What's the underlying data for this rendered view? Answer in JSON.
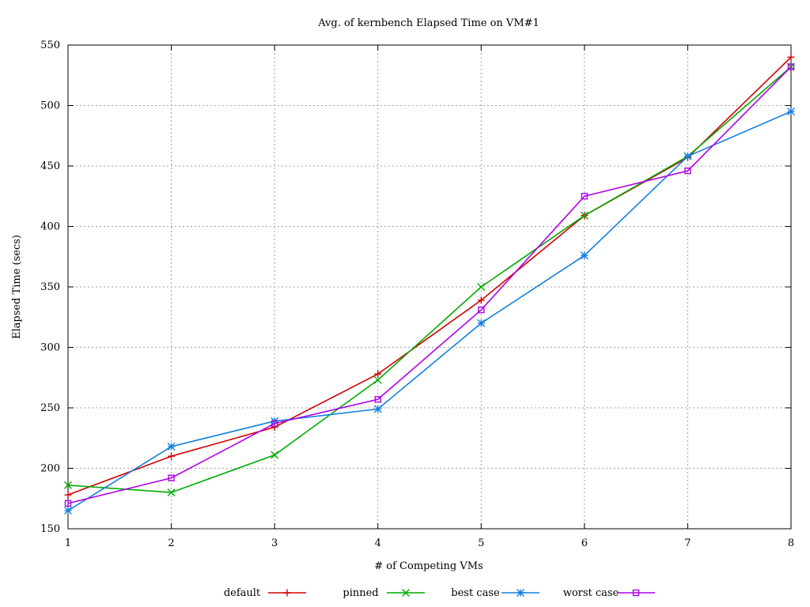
{
  "chart_data": {
    "type": "line",
    "title": "Avg. of kernbench Elapsed Time on VM#1",
    "xlabel": "# of Competing VMs",
    "ylabel": "Elapsed Time (secs)",
    "xlim": [
      1,
      8
    ],
    "ylim": [
      150,
      550
    ],
    "x": [
      1,
      2,
      3,
      4,
      5,
      6,
      7,
      8
    ],
    "xticks": [
      "1",
      "2",
      "3",
      "4",
      "5",
      "6",
      "7",
      "8"
    ],
    "yticks": [
      150,
      200,
      250,
      300,
      350,
      400,
      450,
      500,
      550
    ],
    "grid": true,
    "legend_position": "bottom",
    "series": [
      {
        "name": "default",
        "color": "#d40000",
        "marker": "plus",
        "values": [
          178,
          210,
          234,
          278,
          339,
          409,
          457,
          540
        ]
      },
      {
        "name": "pinned",
        "color": "#00aa00",
        "marker": "cross",
        "values": [
          186,
          180,
          211,
          273,
          350,
          409,
          458,
          532
        ]
      },
      {
        "name": "best case",
        "color": "#1580e0",
        "marker": "star",
        "values": [
          165,
          218,
          239,
          249,
          320,
          376,
          458,
          495
        ]
      },
      {
        "name": "worst case",
        "color": "#b000e8",
        "marker": "square",
        "values": [
          171,
          192,
          237,
          257,
          331,
          425,
          446,
          532
        ]
      }
    ]
  }
}
